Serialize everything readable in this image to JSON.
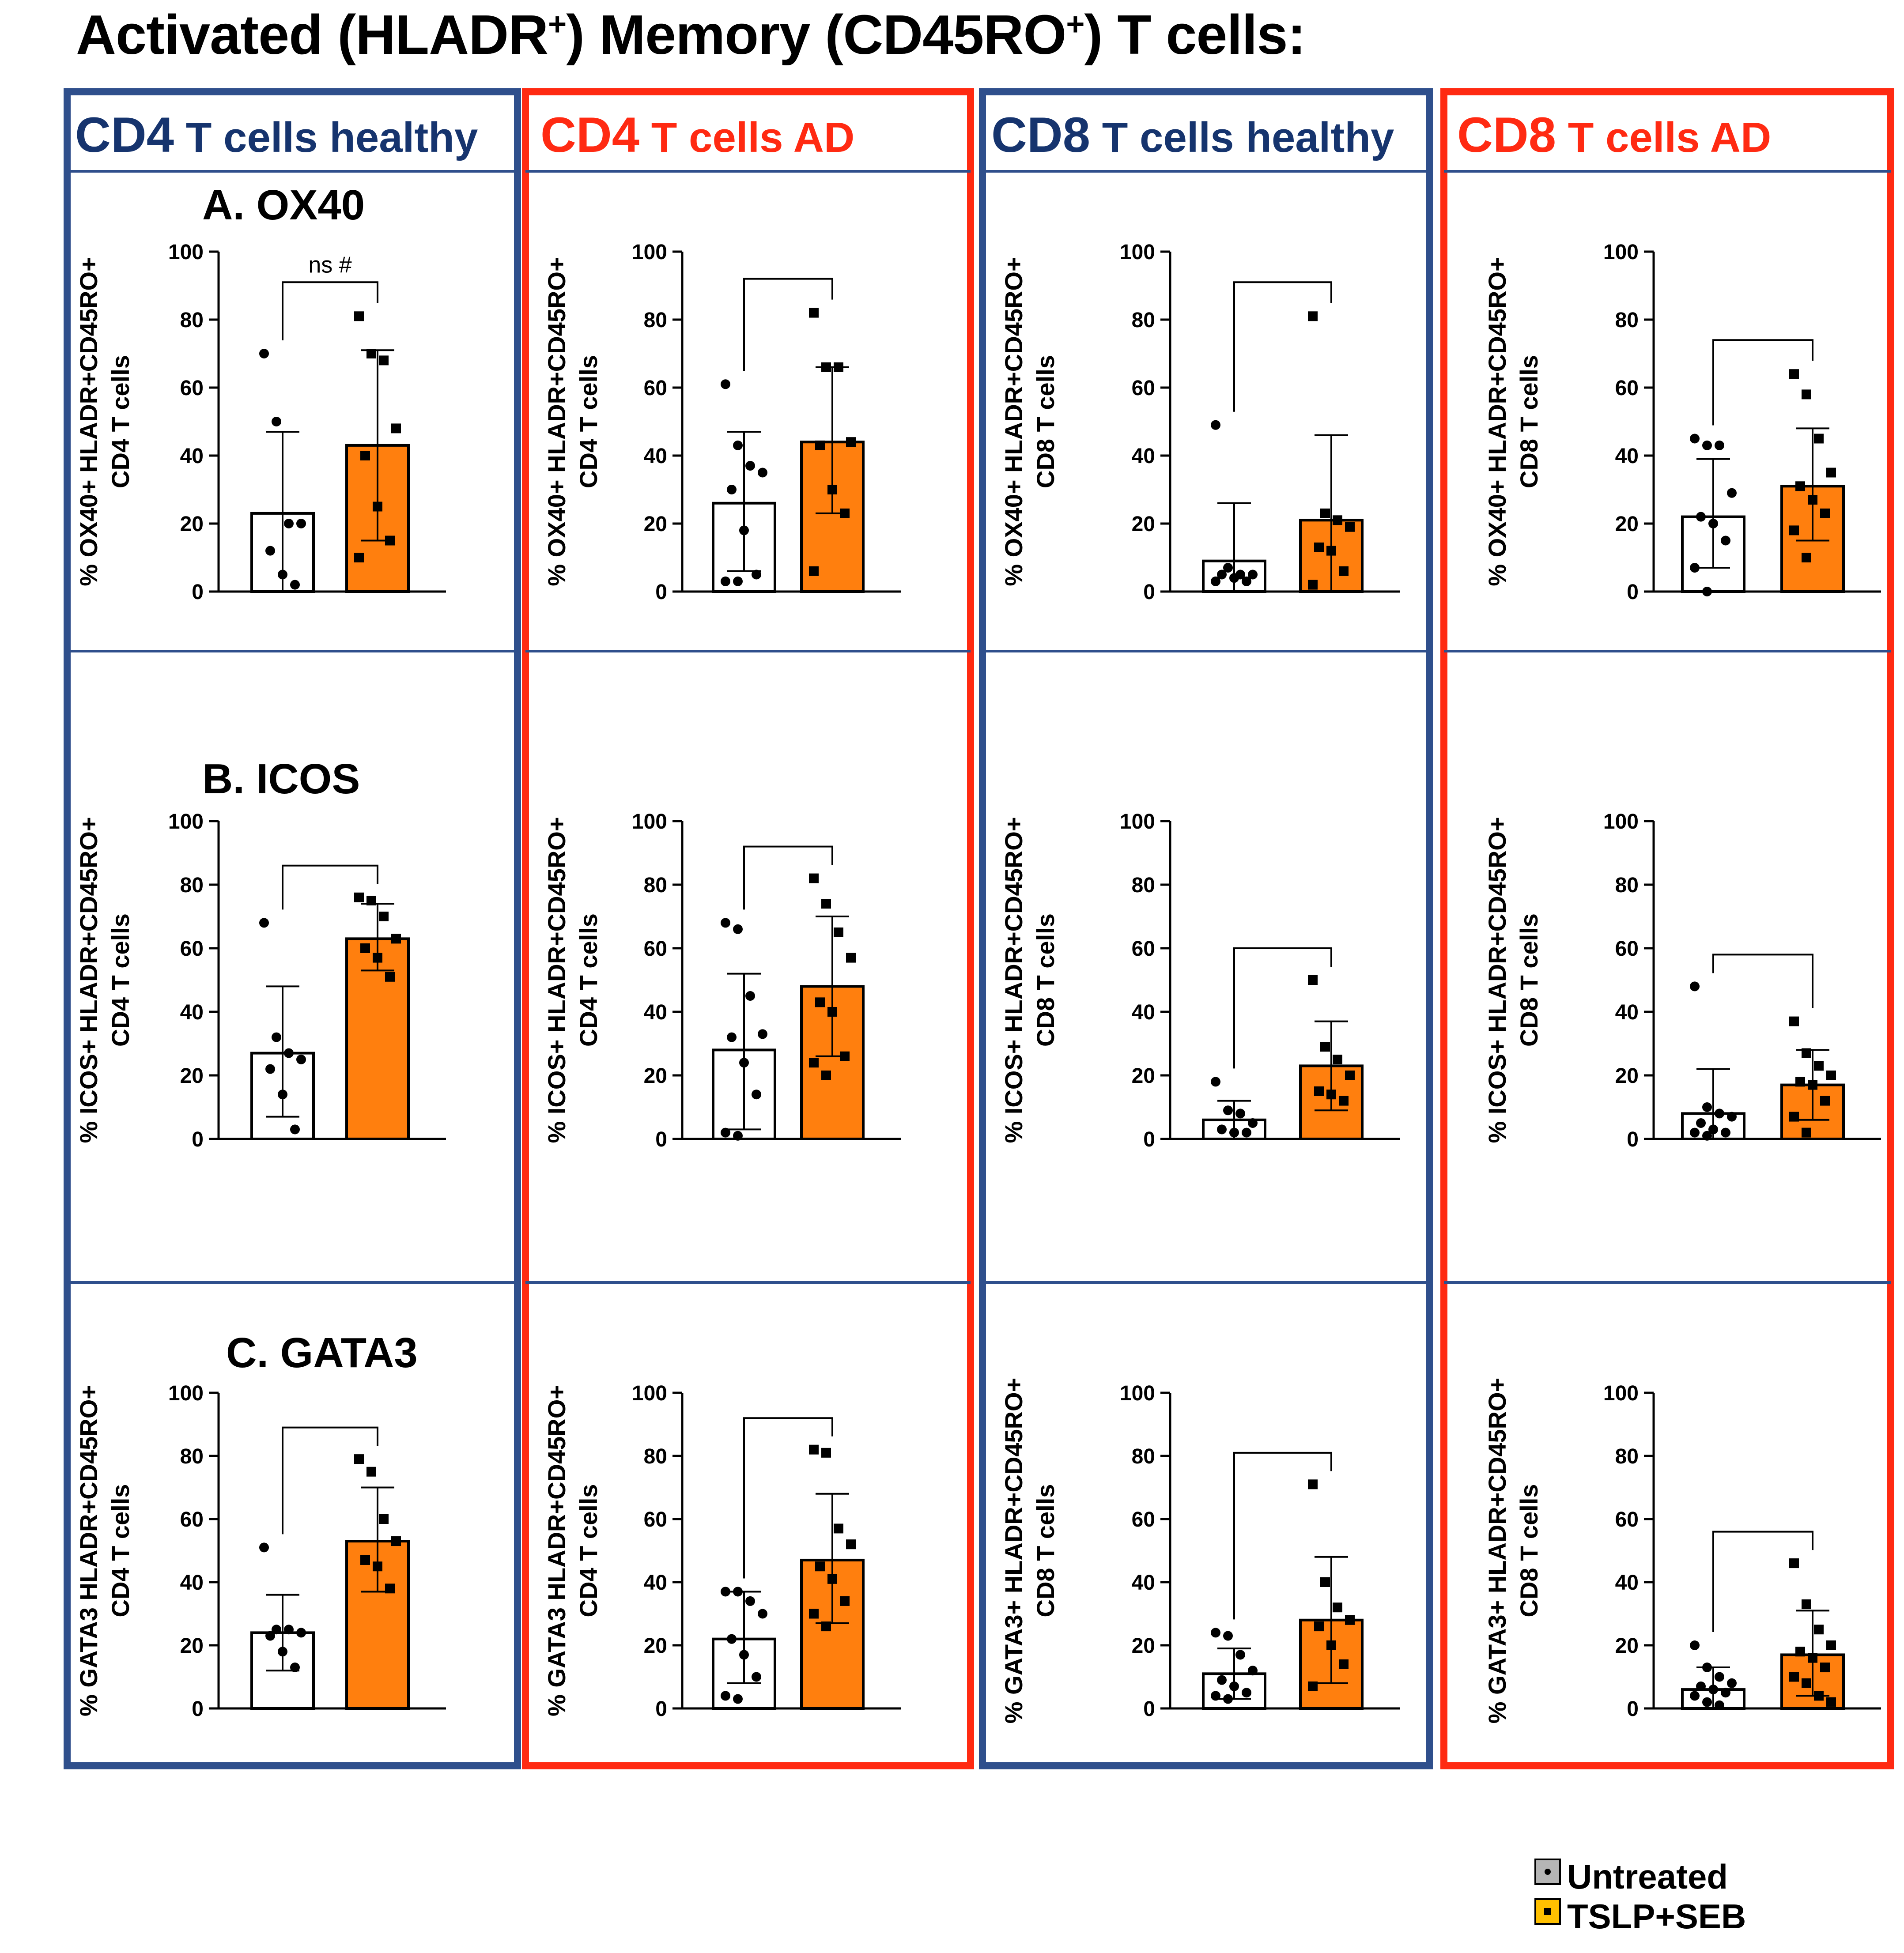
{
  "title": "Activated (HLADR⁺) Memory (CD45RO⁺) T cells:",
  "title_parts": {
    "a": "Activated (HLADR",
    "sup1": "+",
    "b": ") Memory (CD45RO",
    "sup2": "+",
    "c": ") T cells:"
  },
  "colors": {
    "blue": "#2f4f8c",
    "red": "#ff2a12",
    "blue_text": "#16346e",
    "orange": "#ff7f0e",
    "axis": "#000000"
  },
  "columns": [
    {
      "cell": "CD4",
      "label": " T cells healthy",
      "tone": "blue"
    },
    {
      "cell": "CD4",
      "label": " T cells AD",
      "tone": "red"
    },
    {
      "cell": "CD8",
      "label": " T cells healthy",
      "tone": "blue"
    },
    {
      "cell": "CD8",
      "label": " T cells AD",
      "tone": "red"
    }
  ],
  "row_labels": [
    "A. OX40",
    "B. ICOS",
    "C. GATA3"
  ],
  "legend": {
    "untreated": "Untreated",
    "treated": "TSLP+SEB"
  },
  "chart_data": [
    {
      "type": "bar",
      "row": 0,
      "col": 0,
      "ylim": [
        0,
        100
      ],
      "yticks": [
        0,
        20,
        40,
        60,
        80,
        100
      ],
      "ylabel": [
        "% OX40+ HLADR+CD45RO+",
        "CD4 T cells"
      ],
      "series": [
        {
          "name": "Untreated",
          "mean": 23,
          "sd": [
            0,
            47
          ],
          "points": [
            70,
            50,
            20,
            20,
            12,
            5,
            2
          ]
        },
        {
          "name": "TSLP+SEB",
          "mean": 43,
          "sd": [
            15,
            71
          ],
          "points": [
            81,
            70,
            68,
            48,
            40,
            25,
            15,
            10
          ]
        }
      ],
      "annotation": "ns  #"
    },
    {
      "type": "bar",
      "row": 0,
      "col": 1,
      "ylim": [
        0,
        100
      ],
      "yticks": [
        0,
        20,
        40,
        60,
        80,
        100
      ],
      "ylabel": [
        "% OX40+ HLADR+CD45RO+",
        "CD4 T cells"
      ],
      "series": [
        {
          "name": "Untreated",
          "mean": 26,
          "sd": [
            6,
            47
          ],
          "points": [
            61,
            43,
            37,
            35,
            30,
            18,
            5,
            3,
            3
          ]
        },
        {
          "name": "TSLP+SEB",
          "mean": 44,
          "sd": [
            23,
            66
          ],
          "points": [
            82,
            66,
            66,
            44,
            43,
            30,
            23,
            6
          ]
        }
      ]
    },
    {
      "type": "bar",
      "row": 0,
      "col": 2,
      "ylim": [
        0,
        100
      ],
      "yticks": [
        0,
        20,
        40,
        60,
        80,
        100
      ],
      "ylabel": [
        "% OX40+ HLADR+CD45RO+",
        "CD8 T cells"
      ],
      "series": [
        {
          "name": "Untreated",
          "mean": 9,
          "sd": [
            0,
            26
          ],
          "points": [
            49,
            7,
            5,
            5,
            5,
            4,
            3,
            3
          ]
        },
        {
          "name": "TSLP+SEB",
          "mean": 21,
          "sd": [
            0,
            46
          ],
          "points": [
            81,
            23,
            21,
            19,
            13,
            12,
            6,
            2
          ]
        }
      ]
    },
    {
      "type": "bar",
      "row": 0,
      "col": 3,
      "ylim": [
        0,
        100
      ],
      "yticks": [
        0,
        20,
        40,
        60,
        80,
        100
      ],
      "ylabel": [
        "% OX40+ HLADR+CD45RO+",
        "CD8 T cells"
      ],
      "series": [
        {
          "name": "Untreated",
          "mean": 22,
          "sd": [
            7,
            39
          ],
          "points": [
            45,
            43,
            43,
            29,
            22,
            20,
            15,
            7,
            0
          ]
        },
        {
          "name": "TSLP+SEB",
          "mean": 31,
          "sd": [
            15,
            48
          ],
          "points": [
            64,
            58,
            45,
            35,
            31,
            27,
            23,
            18,
            10
          ]
        }
      ]
    },
    {
      "type": "bar",
      "row": 1,
      "col": 0,
      "ylim": [
        0,
        100
      ],
      "yticks": [
        0,
        20,
        40,
        60,
        80,
        100
      ],
      "ylabel": [
        "% ICOS+ HLADR+CD45RO+",
        "CD4 T cells"
      ],
      "series": [
        {
          "name": "Untreated",
          "mean": 27,
          "sd": [
            7,
            48
          ],
          "points": [
            68,
            32,
            27,
            25,
            22,
            14,
            3
          ]
        },
        {
          "name": "TSLP+SEB",
          "mean": 63,
          "sd": [
            53,
            74
          ],
          "points": [
            76,
            75,
            70,
            63,
            60,
            57,
            51
          ]
        }
      ]
    },
    {
      "type": "bar",
      "row": 1,
      "col": 1,
      "ylim": [
        0,
        100
      ],
      "yticks": [
        0,
        20,
        40,
        60,
        80,
        100
      ],
      "ylabel": [
        "% ICOS+ HLADR+CD45RO+",
        "CD4 T cells"
      ],
      "series": [
        {
          "name": "Untreated",
          "mean": 28,
          "sd": [
            3,
            52
          ],
          "points": [
            68,
            66,
            45,
            33,
            32,
            24,
            14,
            2,
            1
          ]
        },
        {
          "name": "TSLP+SEB",
          "mean": 48,
          "sd": [
            26,
            70
          ],
          "points": [
            82,
            74,
            65,
            57,
            43,
            40,
            26,
            24,
            20
          ]
        }
      ]
    },
    {
      "type": "bar",
      "row": 1,
      "col": 2,
      "ylim": [
        0,
        100
      ],
      "yticks": [
        0,
        20,
        40,
        60,
        80,
        100
      ],
      "ylabel": [
        "% ICOS+ HLADR+CD45RO+",
        "CD8 T cells"
      ],
      "series": [
        {
          "name": "Untreated",
          "mean": 6,
          "sd": [
            0,
            12
          ],
          "points": [
            18,
            9,
            8,
            5,
            3,
            2,
            2
          ]
        },
        {
          "name": "TSLP+SEB",
          "mean": 23,
          "sd": [
            9,
            37
          ],
          "points": [
            50,
            29,
            25,
            20,
            15,
            14,
            12
          ]
        }
      ]
    },
    {
      "type": "bar",
      "row": 1,
      "col": 3,
      "ylim": [
        0,
        100
      ],
      "yticks": [
        0,
        20,
        40,
        60,
        80,
        100
      ],
      "ylabel": [
        "% ICOS+ HLADR+CD45RO+",
        "CD8 T cells"
      ],
      "series": [
        {
          "name": "Untreated",
          "mean": 8,
          "sd": [
            0,
            22
          ],
          "points": [
            48,
            10,
            8,
            7,
            5,
            3,
            2,
            2,
            1
          ]
        },
        {
          "name": "TSLP+SEB",
          "mean": 17,
          "sd": [
            6,
            28
          ],
          "points": [
            37,
            27,
            23,
            20,
            18,
            17,
            12,
            7,
            2
          ]
        }
      ]
    },
    {
      "type": "bar",
      "row": 2,
      "col": 0,
      "ylim": [
        0,
        100
      ],
      "yticks": [
        0,
        20,
        40,
        60,
        80,
        100
      ],
      "ylabel": [
        "% GATA3 HLADR+CD45RO+",
        "CD4 T cells"
      ],
      "series": [
        {
          "name": "Untreated",
          "mean": 24,
          "sd": [
            12,
            36
          ],
          "points": [
            51,
            25,
            25,
            24,
            23,
            18,
            13
          ]
        },
        {
          "name": "TSLP+SEB",
          "mean": 53,
          "sd": [
            37,
            70
          ],
          "points": [
            79,
            75,
            60,
            53,
            47,
            45,
            38
          ]
        }
      ]
    },
    {
      "type": "bar",
      "row": 2,
      "col": 1,
      "ylim": [
        0,
        100
      ],
      "yticks": [
        0,
        20,
        40,
        60,
        80,
        100
      ],
      "ylabel": [
        "% GATA3 HLADR+CD45RO+",
        "CD4 T cells"
      ],
      "series": [
        {
          "name": "Untreated",
          "mean": 22,
          "sd": [
            8,
            37
          ],
          "points": [
            37,
            37,
            34,
            30,
            22,
            17,
            10,
            4,
            3
          ]
        },
        {
          "name": "TSLP+SEB",
          "mean": 47,
          "sd": [
            27,
            68
          ],
          "points": [
            82,
            81,
            57,
            52,
            45,
            41,
            34,
            30,
            26
          ]
        }
      ]
    },
    {
      "type": "bar",
      "row": 2,
      "col": 2,
      "ylim": [
        0,
        100
      ],
      "yticks": [
        0,
        20,
        40,
        60,
        80,
        100
      ],
      "ylabel": [
        "% GATA3+ HLADR+CD45RO+",
        "CD8 T cells"
      ],
      "series": [
        {
          "name": "Untreated",
          "mean": 11,
          "sd": [
            3,
            19
          ],
          "points": [
            24,
            23,
            17,
            12,
            9,
            7,
            5,
            4,
            3
          ]
        },
        {
          "name": "TSLP+SEB",
          "mean": 28,
          "sd": [
            8,
            48
          ],
          "points": [
            71,
            40,
            32,
            28,
            26,
            20,
            14,
            7
          ]
        }
      ]
    },
    {
      "type": "bar",
      "row": 2,
      "col": 3,
      "ylim": [
        0,
        100
      ],
      "yticks": [
        0,
        20,
        40,
        60,
        80,
        100
      ],
      "ylabel": [
        "% GATA3+ HLADR+CD45RO+",
        "CD8 T cells"
      ],
      "series": [
        {
          "name": "Untreated",
          "mean": 6,
          "sd": [
            0,
            13
          ],
          "points": [
            20,
            13,
            10,
            8,
            7,
            6,
            5,
            4,
            2,
            1
          ]
        },
        {
          "name": "TSLP+SEB",
          "mean": 17,
          "sd": [
            4,
            31
          ],
          "points": [
            46,
            33,
            25,
            20,
            18,
            16,
            13,
            10,
            8,
            4,
            2
          ]
        }
      ]
    }
  ]
}
